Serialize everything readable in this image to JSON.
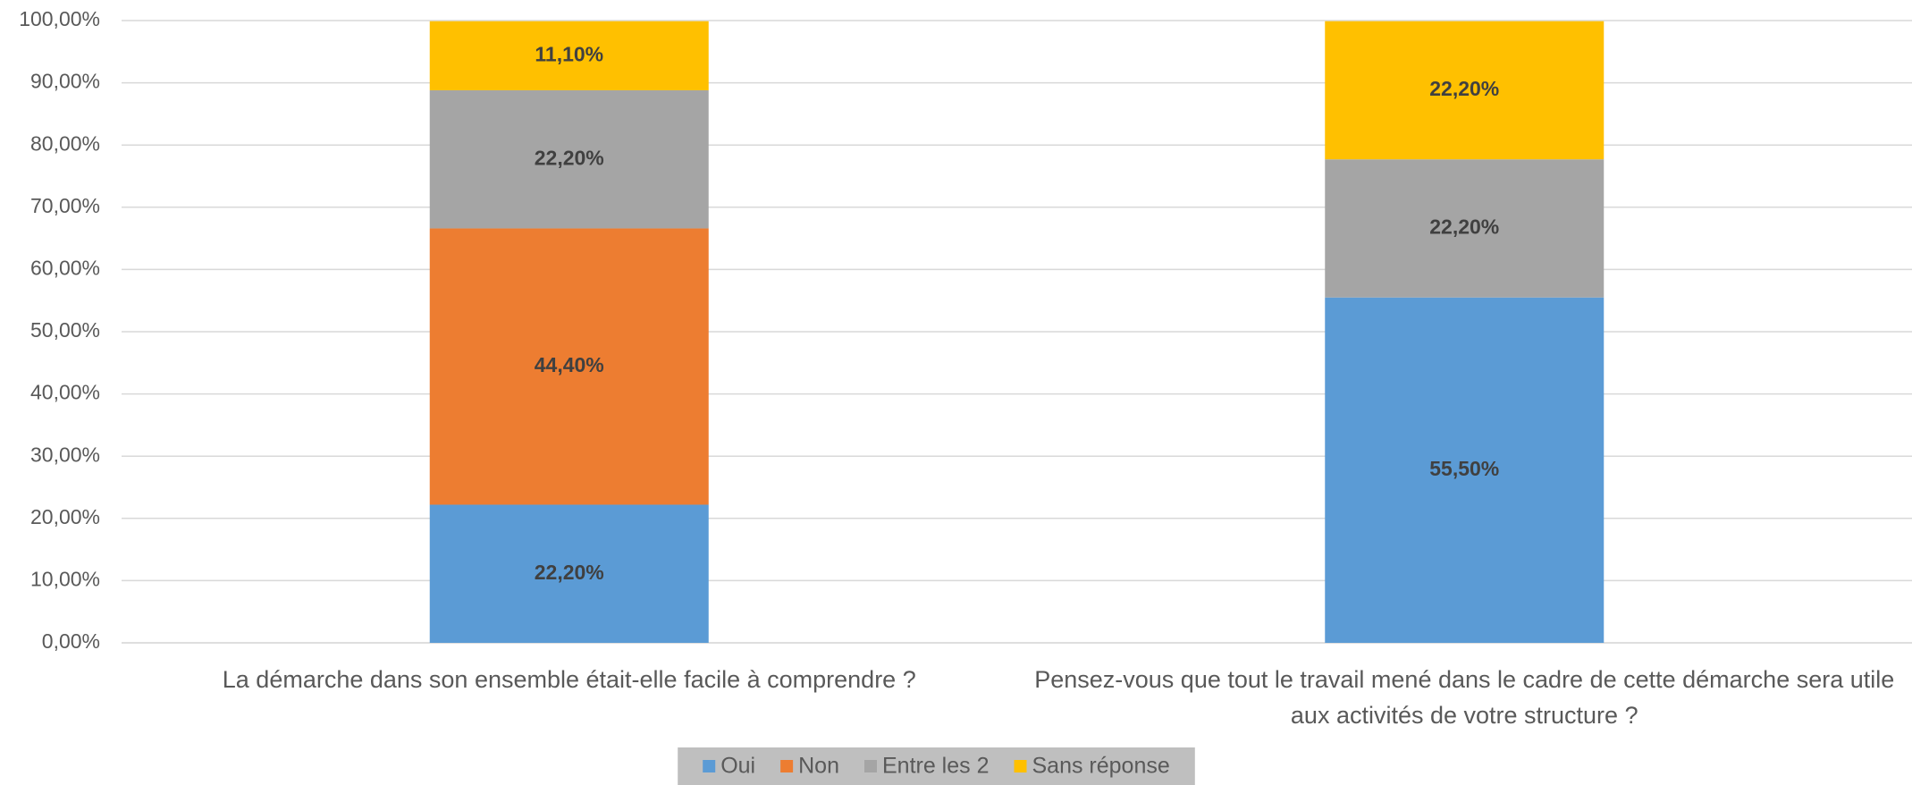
{
  "chart_data": {
    "type": "stacked_bar",
    "categories": [
      "La démarche dans son ensemble était-elle facile à comprendre ?",
      "Pensez-vous que tout le travail mené dans le cadre de cette démarche sera utile aux activités de votre structure ?"
    ],
    "series": [
      {
        "name": "Oui",
        "color": "#5b9bd5",
        "values": [
          22.2,
          55.5
        ],
        "value_labels": [
          "22,20%",
          "55,50%"
        ]
      },
      {
        "name": "Non",
        "color": "#ed7d31",
        "values": [
          44.4,
          null
        ],
        "value_labels": [
          "44,40%",
          null
        ]
      },
      {
        "name": "Entre les 2",
        "color": "#a5a5a5",
        "values": [
          22.2,
          22.2
        ],
        "value_labels": [
          "22,20%",
          "22,20%"
        ]
      },
      {
        "name": "Sans réponse",
        "color": "#ffc000",
        "values": [
          11.1,
          22.2
        ],
        "value_labels": [
          "11,10%",
          "22,20%"
        ]
      }
    ],
    "ylim": [
      0,
      100
    ],
    "yticks": [
      {
        "value": 0,
        "label": "0,00%"
      },
      {
        "value": 10,
        "label": "10,00%"
      },
      {
        "value": 20,
        "label": "20,00%"
      },
      {
        "value": 30,
        "label": "30,00%"
      },
      {
        "value": 40,
        "label": "40,00%"
      },
      {
        "value": 50,
        "label": "50,00%"
      },
      {
        "value": 60,
        "label": "60,00%"
      },
      {
        "value": 70,
        "label": "70,00%"
      },
      {
        "value": 80,
        "label": "80,00%"
      },
      {
        "value": 90,
        "label": "90,00%"
      },
      {
        "value": 100,
        "label": "100,00%"
      }
    ],
    "grid": true,
    "legend": "bottom"
  }
}
